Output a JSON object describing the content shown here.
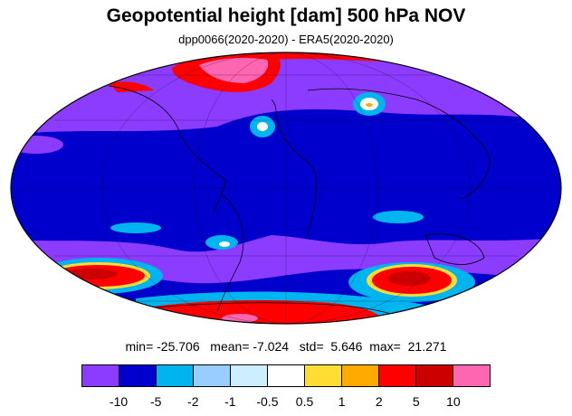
{
  "title": "Geopotential height [dam] 500 hPa NOV",
  "subtitle": "dpp0066(2020-2020) - ERA5(2020-2020)",
  "stats": {
    "min_label": "min=",
    "min": "-25.706",
    "mean_label": "mean=",
    "mean": "-7.024",
    "std_label": "std=",
    "std": "5.646",
    "max_label": "max=",
    "max": "21.271"
  },
  "colorbar": {
    "colors": [
      "#8c3cff",
      "#0000cc",
      "#00b4f0",
      "#99ccff",
      "#cceeff",
      "#ffffff",
      "#ffdd33",
      "#ffaa00",
      "#ff0000",
      "#cc0000",
      "#ff66b2"
    ],
    "ticks": [
      "-10",
      "-5",
      "-2",
      "-1",
      "-0.5",
      "0.5",
      "1",
      "2",
      "5",
      "10"
    ]
  },
  "map": {
    "projection": "Mollweide",
    "background_color": "#8c3cff",
    "dominant_color": "#0000cc"
  }
}
